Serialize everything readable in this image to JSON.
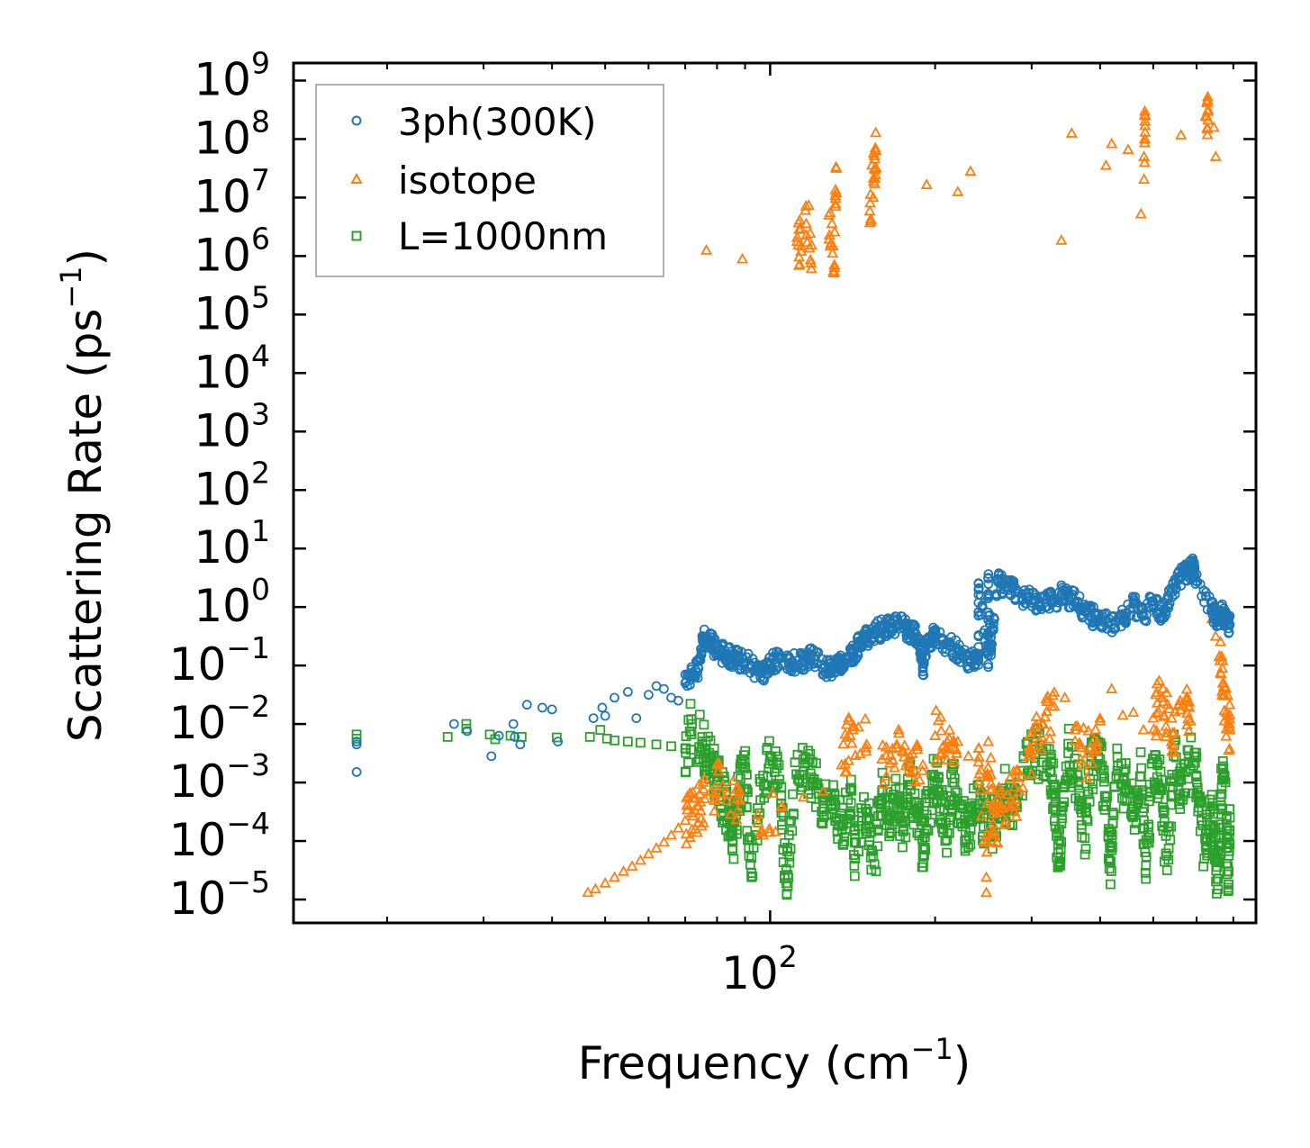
{
  "chart_data": {
    "type": "scatter",
    "xscale": "log",
    "yscale": "log",
    "xlim": [
      13.5,
      770
    ],
    "ylim_exponent": [
      -5.4,
      9.3
    ],
    "xlabel": "Frequency (cm",
    "xlabel_sup": "−1",
    "xlabel_end": ")",
    "ylabel": "Scattering Rate (ps",
    "ylabel_sup": "−1",
    "ylabel_end": ")",
    "x_major_ticks": [
      {
        "base": "10",
        "exp": "2",
        "value": 100
      }
    ],
    "y_ticks": [
      {
        "base": "10",
        "exp": "−5",
        "value": -5
      },
      {
        "base": "10",
        "exp": "−4",
        "value": -4
      },
      {
        "base": "10",
        "exp": "−3",
        "value": -3
      },
      {
        "base": "10",
        "exp": "−2",
        "value": -2
      },
      {
        "base": "10",
        "exp": "−1",
        "value": -1
      },
      {
        "base": "10",
        "exp": "0",
        "value": 0
      },
      {
        "base": "10",
        "exp": "1",
        "value": 1
      },
      {
        "base": "10",
        "exp": "2",
        "value": 2
      },
      {
        "base": "10",
        "exp": "3",
        "value": 3
      },
      {
        "base": "10",
        "exp": "4",
        "value": 4
      },
      {
        "base": "10",
        "exp": "5",
        "value": 5
      },
      {
        "base": "10",
        "exp": "6",
        "value": 6
      },
      {
        "base": "10",
        "exp": "7",
        "value": 7
      },
      {
        "base": "10",
        "exp": "8",
        "value": 8
      },
      {
        "base": "10",
        "exp": "9",
        "value": 9
      }
    ],
    "legend": {
      "position": "top-left",
      "entries": [
        {
          "label": "3ph(300K)",
          "marker": "circle",
          "color": "#1f77b4"
        },
        {
          "label": "isotope",
          "marker": "triangle",
          "color": "#ff7f0e"
        },
        {
          "label": "L=1000nm",
          "marker": "square",
          "color": "#2ca02c"
        }
      ]
    },
    "series": [
      {
        "name": "3ph(300K)",
        "marker": "circle",
        "color": "#1f77b4",
        "points": [
          [
            17.6,
            -2.3
          ],
          [
            17.6,
            -2.35
          ],
          [
            17.6,
            -2.82
          ],
          [
            26.5,
            -2.0
          ],
          [
            28,
            -2.12
          ],
          [
            31,
            -2.55
          ],
          [
            32,
            -2.2
          ],
          [
            34,
            -2.0
          ],
          [
            34.2,
            -2.22
          ],
          [
            35,
            -2.35
          ],
          [
            36,
            -1.67
          ],
          [
            38.4,
            -1.72
          ],
          [
            40,
            -1.75
          ],
          [
            41,
            -2.3
          ],
          [
            47.6,
            -1.9
          ],
          [
            49.4,
            -1.72
          ],
          [
            50,
            -1.86
          ],
          [
            52,
            -1.55
          ],
          [
            55,
            -1.45
          ],
          [
            57,
            -1.9
          ],
          [
            60,
            -1.5
          ],
          [
            62,
            -1.35
          ],
          [
            64,
            -1.4
          ],
          [
            66,
            -1.55
          ],
          [
            68,
            -1.6
          ],
          [
            70,
            -1.3
          ],
          [
            72,
            -1.12
          ],
          [
            74,
            -1.05
          ],
          [
            75.5,
            -0.52
          ],
          [
            78,
            -0.6
          ],
          [
            80,
            -0.75
          ],
          [
            82,
            -0.8
          ],
          [
            85,
            -0.85
          ],
          [
            88,
            -0.9
          ],
          [
            92,
            -0.98
          ],
          [
            96,
            -1.2
          ],
          [
            100,
            -0.95
          ],
          [
            104,
            -0.88
          ],
          [
            110,
            -0.95
          ],
          [
            115,
            -0.92
          ],
          [
            120,
            -0.85
          ],
          [
            126,
            -1.02
          ],
          [
            130,
            -1.08
          ],
          [
            134,
            -0.95
          ],
          [
            138,
            -0.9
          ],
          [
            142,
            -0.78
          ],
          [
            146,
            -0.62
          ],
          [
            150,
            -0.52
          ],
          [
            155,
            -0.43
          ],
          [
            160,
            -0.38
          ],
          [
            166,
            -0.28
          ],
          [
            172,
            -0.3
          ],
          [
            178,
            -0.38
          ],
          [
            183,
            -0.45
          ],
          [
            188,
            -0.65
          ],
          [
            190,
            -1.05
          ],
          [
            195,
            -0.55
          ],
          [
            200,
            -0.5
          ],
          [
            210,
            -0.62
          ],
          [
            220,
            -0.75
          ],
          [
            230,
            -0.9
          ],
          [
            240,
            -0.92
          ],
          [
            250,
            -0.98
          ],
          [
            253,
            -0.75
          ],
          [
            240,
            0.4
          ],
          [
            250,
            0.5
          ],
          [
            260,
            0.45
          ],
          [
            270,
            0.35
          ],
          [
            280,
            0.25
          ],
          [
            295,
            0.15
          ],
          [
            310,
            0.05
          ],
          [
            325,
            0.1
          ],
          [
            340,
            0.2
          ],
          [
            355,
            0.15
          ],
          [
            370,
            0.0
          ],
          [
            385,
            -0.15
          ],
          [
            400,
            -0.2
          ],
          [
            420,
            -0.3
          ],
          [
            440,
            -0.2
          ],
          [
            460,
            0.05
          ],
          [
            480,
            -0.15
          ],
          [
            500,
            0.1
          ],
          [
            520,
            -0.2
          ],
          [
            540,
            0.25
          ],
          [
            560,
            0.5
          ],
          [
            575,
            0.6
          ],
          [
            590,
            0.7
          ],
          [
            595,
            0.55
          ],
          [
            640,
            -0.05
          ],
          [
            655,
            -0.2
          ],
          [
            670,
            -0.1
          ],
          [
            680,
            -0.25
          ],
          [
            690,
            -0.3
          ]
        ]
      },
      {
        "name": "isotope",
        "marker": "triangle",
        "color": "#ff7f0e",
        "points": [
          [
            46.5,
            -4.88
          ],
          [
            48,
            -4.82
          ],
          [
            50,
            -4.72
          ],
          [
            52,
            -4.62
          ],
          [
            54,
            -4.52
          ],
          [
            56,
            -4.43
          ],
          [
            58,
            -4.33
          ],
          [
            60,
            -4.22
          ],
          [
            62,
            -4.12
          ],
          [
            64,
            -4.02
          ],
          [
            66,
            -3.9
          ],
          [
            68,
            -3.78
          ],
          [
            70,
            -3.65
          ],
          [
            72,
            -3.52
          ],
          [
            74,
            -3.4
          ],
          [
            76,
            -3.28
          ],
          [
            78,
            -3.15
          ],
          [
            82,
            -3.05
          ],
          [
            88,
            -3.3
          ],
          [
            95,
            -3.55
          ],
          [
            105,
            -3.4
          ],
          [
            115,
            -3.25
          ],
          [
            125,
            -3.15
          ],
          [
            135,
            -2.7
          ],
          [
            140,
            -2.2
          ],
          [
            150,
            -2.35
          ],
          [
            160,
            -2.6
          ],
          [
            170,
            -2.4
          ],
          [
            180,
            -2.55
          ],
          [
            190,
            -2.7
          ],
          [
            200,
            -2.2
          ],
          [
            210,
            -2.4
          ],
          [
            220,
            -2.3
          ],
          [
            230,
            -2.55
          ],
          [
            240,
            -2.65
          ],
          [
            250,
            -2.3
          ],
          [
            248,
            -4.62
          ],
          [
            256,
            -3.85
          ],
          [
            262,
            -3.5
          ],
          [
            275,
            -3.3
          ],
          [
            285,
            -3.15
          ],
          [
            300,
            -2.5
          ],
          [
            315,
            -2.0
          ],
          [
            330,
            -1.7
          ],
          [
            345,
            -1.55
          ],
          [
            360,
            -2.1
          ],
          [
            380,
            -2.5
          ],
          [
            400,
            -1.95
          ],
          [
            420,
            -1.4
          ],
          [
            440,
            -1.85
          ],
          [
            460,
            -1.8
          ],
          [
            480,
            -2.1
          ],
          [
            500,
            -1.9
          ],
          [
            520,
            -1.55
          ],
          [
            540,
            -2.3
          ],
          [
            560,
            -1.6
          ],
          [
            575,
            -1.6
          ],
          [
            585,
            -1.95
          ],
          [
            640,
            -0.2
          ],
          [
            650,
            -0.5
          ],
          [
            660,
            -0.85
          ],
          [
            670,
            -1.3
          ],
          [
            680,
            -1.8
          ],
          [
            690,
            -2.1
          ],
          [
            76.5,
            6.1
          ],
          [
            89,
            5.95
          ],
          [
            112,
            6.25
          ],
          [
            114,
            6.17
          ],
          [
            116,
            6.78
          ],
          [
            119,
            6.19
          ],
          [
            128,
            6.7
          ],
          [
            131,
            5.85
          ],
          [
            132,
            7.5
          ],
          [
            152,
            6.77
          ],
          [
            155,
            7.5
          ],
          [
            156,
            7.8
          ],
          [
            193,
            7.22
          ],
          [
            220,
            7.1
          ],
          [
            232,
            7.45
          ],
          [
            340,
            6.27
          ],
          [
            355,
            8.1
          ],
          [
            410,
            7.55
          ],
          [
            420,
            7.92
          ],
          [
            450,
            7.82
          ],
          [
            475,
            6.72
          ],
          [
            481,
            7.7
          ],
          [
            484,
            8.4
          ],
          [
            562,
            8.07
          ],
          [
            623,
            8.39
          ],
          [
            630,
            8.5
          ],
          [
            645,
            8.2
          ],
          [
            650,
            7.7
          ]
        ]
      },
      {
        "name": "L=1000nm",
        "marker": "square",
        "color": "#2ca02c",
        "points": [
          [
            17.6,
            -2.18
          ],
          [
            17.6,
            -2.25
          ],
          [
            25.8,
            -2.22
          ],
          [
            27.9,
            -2.0
          ],
          [
            27.9,
            -2.08
          ],
          [
            30.8,
            -2.18
          ],
          [
            31.5,
            -2.26
          ],
          [
            33.6,
            -2.2
          ],
          [
            35.2,
            -2.22
          ],
          [
            40.8,
            -2.23
          ],
          [
            46.9,
            -2.22
          ],
          [
            49,
            -2.1
          ],
          [
            50.4,
            -2.25
          ],
          [
            52,
            -2.28
          ],
          [
            55,
            -2.3
          ],
          [
            58,
            -2.32
          ],
          [
            62,
            -2.35
          ],
          [
            66,
            -2.38
          ],
          [
            70,
            -2.42
          ],
          [
            72,
            -2.0
          ],
          [
            76,
            -2.45
          ],
          [
            78,
            -2.6
          ],
          [
            80,
            -2.9
          ],
          [
            82,
            -3.3
          ],
          [
            85,
            -3.6
          ],
          [
            85.5,
            -4.0
          ],
          [
            88,
            -3.1
          ],
          [
            90,
            -2.75
          ],
          [
            92,
            -4.4
          ],
          [
            96,
            -3.3
          ],
          [
            100,
            -2.55
          ],
          [
            104,
            -2.95
          ],
          [
            107,
            -4.72
          ],
          [
            110,
            -3.2
          ],
          [
            115,
            -2.6
          ],
          [
            120,
            -3.0
          ],
          [
            125,
            -3.3
          ],
          [
            130,
            -3.45
          ],
          [
            135,
            -3.75
          ],
          [
            140,
            -3.1
          ],
          [
            143,
            -4.3
          ],
          [
            150,
            -3.5
          ],
          [
            155,
            -4.4
          ],
          [
            160,
            -3.15
          ],
          [
            165,
            -3.6
          ],
          [
            170,
            -3.35
          ],
          [
            175,
            -3.75
          ],
          [
            180,
            -3.05
          ],
          [
            186,
            -3.6
          ],
          [
            190,
            -4.1
          ],
          [
            193,
            -3.55
          ],
          [
            200,
            -2.9
          ],
          [
            205,
            -3.3
          ],
          [
            210,
            -4.2
          ],
          [
            215,
            -3.0
          ],
          [
            222,
            -3.4
          ],
          [
            230,
            -4.1
          ],
          [
            235,
            -3.1
          ],
          [
            245,
            -3.6
          ],
          [
            255,
            -3.85
          ],
          [
            265,
            -3.1
          ],
          [
            275,
            -3.45
          ],
          [
            290,
            -2.8
          ],
          [
            305,
            -2.5
          ],
          [
            320,
            -2.7
          ],
          [
            330,
            -3.2
          ],
          [
            335,
            -4.45
          ],
          [
            340,
            -3.7
          ],
          [
            350,
            -2.5
          ],
          [
            365,
            -3.0
          ],
          [
            375,
            -3.95
          ],
          [
            385,
            -2.7
          ],
          [
            400,
            -2.6
          ],
          [
            410,
            -3.4
          ],
          [
            418,
            -4.35
          ],
          [
            430,
            -2.8
          ],
          [
            445,
            -3.1
          ],
          [
            460,
            -3.5
          ],
          [
            475,
            -2.9
          ],
          [
            485,
            -4.42
          ],
          [
            500,
            -2.6
          ],
          [
            515,
            -3.1
          ],
          [
            530,
            -4.5
          ],
          [
            545,
            -2.55
          ],
          [
            560,
            -3.2
          ],
          [
            580,
            -2.45
          ],
          [
            600,
            -2.9
          ],
          [
            620,
            -4.3
          ],
          [
            635,
            -3.5
          ],
          [
            645,
            -3.8
          ],
          [
            655,
            -4.65
          ],
          [
            665,
            -3.2
          ],
          [
            675,
            -2.9
          ],
          [
            685,
            -4.8
          ],
          [
            690,
            -3.6
          ]
        ]
      }
    ]
  }
}
